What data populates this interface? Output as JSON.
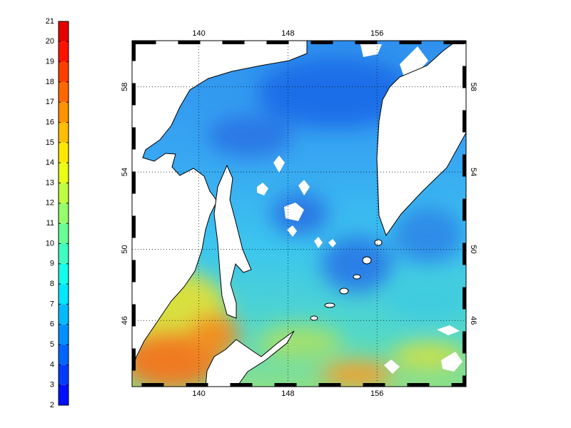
{
  "colorbar": {
    "ticks": [
      2,
      3,
      4,
      5,
      6,
      7,
      8,
      9,
      10,
      11,
      12,
      13,
      14,
      15,
      16,
      17,
      18,
      19,
      20,
      21
    ]
  },
  "map": {
    "lon_lim": [
      134,
      164
    ],
    "lat_lim": [
      42,
      60
    ],
    "lon_ticks": [
      140,
      148,
      156
    ],
    "lat_ticks": [
      46,
      50,
      54,
      58
    ]
  }
}
